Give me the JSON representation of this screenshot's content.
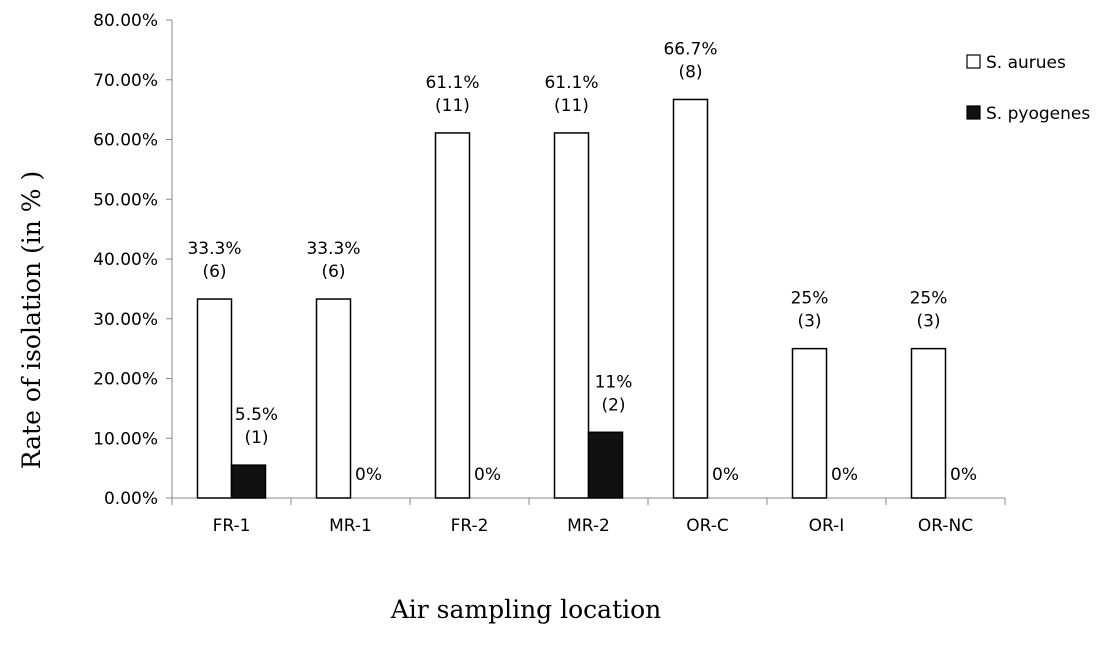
{
  "chart_data": {
    "type": "bar",
    "categories": [
      "FR-1",
      "MR-1",
      "FR-2",
      "MR-2",
      "OR-C",
      "OR-I",
      "OR-NC"
    ],
    "series": [
      {
        "name": "S. aurues",
        "color": "#ffffff",
        "values": [
          33.3,
          33.3,
          61.1,
          61.1,
          66.7,
          25,
          25
        ],
        "labels": [
          [
            "33.3%",
            "(6)"
          ],
          [
            "33.3%",
            "(6)"
          ],
          [
            "61.1%",
            "(11)"
          ],
          [
            "61.1%",
            "(11)"
          ],
          [
            "66.7%",
            "(8)"
          ],
          [
            "25%",
            "(3)"
          ],
          [
            "25%",
            "(3)"
          ]
        ]
      },
      {
        "name": "S. pyogenes",
        "color": "#111111",
        "values": [
          5.5,
          0,
          0,
          11,
          0,
          0,
          0
        ],
        "labels": [
          [
            "5.5%",
            "(1)"
          ],
          [
            "0%"
          ],
          [
            "0%"
          ],
          [
            "11%",
            "(2)"
          ],
          [
            "0%"
          ],
          [
            "0%"
          ],
          [
            "0%"
          ]
        ]
      }
    ],
    "xlabel": "Air sampling location",
    "ylabel": "Rate of isolation (in % )",
    "ylim": [
      0,
      80
    ],
    "yticks": [
      "0.00%",
      "10.00%",
      "20.00%",
      "30.00%",
      "40.00%",
      "50.00%",
      "60.00%",
      "70.00%",
      "80.00%"
    ],
    "grid": false,
    "legend_position": "top-right"
  }
}
